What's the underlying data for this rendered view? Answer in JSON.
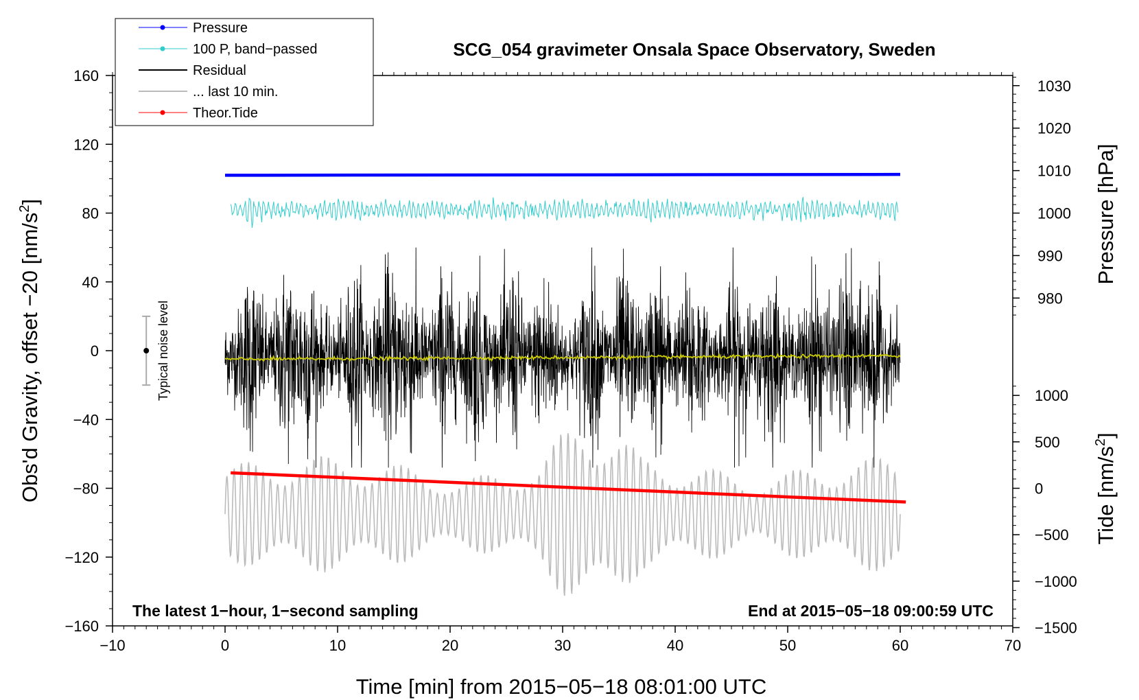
{
  "chart_data": {
    "type": "line",
    "title": "SCG_054 gravimeter Onsala Space Observatory, Sweden",
    "xlabel": "Time [min] from 2015−05−18 08:01:00 UTC",
    "ylabel_left": "Obs'd Gravity, offset −20 [nm/s",
    "ylabel_left_sup": "2",
    "ylabel_left_close": "]",
    "ylabel_pressure": "Pressure [hPa]",
    "ylabel_tide": "Tide [nm/s",
    "ylabel_tide_sup": "2",
    "ylabel_tide_close": "]",
    "xlim": [
      -10,
      70
    ],
    "ylim": [
      -160,
      160
    ],
    "xticks": [
      -10,
      0,
      10,
      20,
      30,
      40,
      50,
      60,
      70
    ],
    "xtick_labels": [
      "−10",
      "0",
      "10",
      "20",
      "30",
      "40",
      "50",
      "60",
      "70"
    ],
    "yticks": [
      -160,
      -120,
      -80,
      -40,
      0,
      40,
      80,
      120,
      160
    ],
    "ytick_labels": [
      "−160",
      "−120",
      "−80",
      "−40",
      "0",
      "40",
      "80",
      "120",
      "160"
    ],
    "pressure_axis": {
      "ticks": [
        980,
        990,
        1000,
        1010,
        1020,
        1030
      ],
      "labels": [
        "980",
        "990",
        "1000",
        "1010",
        "1020",
        "1030"
      ],
      "gravity_at_1000": 80,
      "gravity_per_hPa": 2.47
    },
    "tide_axis": {
      "ticks": [
        -1500,
        -1000,
        -500,
        0,
        500,
        1000
      ],
      "labels": [
        "−1500",
        "−1000",
        "−500",
        "0",
        "500",
        "1000"
      ],
      "gravity_at_0": -80,
      "gravity_per_unit": 0.054
    },
    "legend": {
      "position": "top-left",
      "entries": [
        {
          "label": "Pressure",
          "color": "#0000ff",
          "marker": true
        },
        {
          "label": "100 P, band−passed",
          "color": "#33cccc",
          "marker": true
        },
        {
          "label": "Residual",
          "color": "#000000",
          "marker": false
        },
        {
          "label": "... last 10 min.",
          "color": "#bbbbbb",
          "marker": false
        },
        {
          "label": "Theor.Tide",
          "color": "#ff0000",
          "marker": true
        }
      ]
    },
    "series": [
      {
        "name": "Pressure",
        "color": "#0000ff",
        "x": [
          0,
          60
        ],
        "pressure_hPa": [
          1008.9,
          1009.1
        ]
      },
      {
        "name": "100 P, band-passed",
        "color": "#33cccc",
        "x_range": [
          0.5,
          59.8
        ],
        "center": 82,
        "amplitude": 4
      },
      {
        "name": "Residual",
        "color": "#000000",
        "x_range": [
          0,
          60
        ],
        "center": -4,
        "max_abs": 60
      },
      {
        "name": "Residual mean",
        "color": "#cccc00",
        "x_range": [
          0,
          60
        ],
        "y": [
          -5,
          -3
        ]
      },
      {
        "name": "... last 10 min.",
        "color": "#bbbbbb",
        "x_range": [
          0,
          60
        ],
        "y_range": [
          -157,
          -48
        ],
        "center": -95
      },
      {
        "name": "Theor.Tide",
        "color": "#ff0000",
        "x": [
          0.5,
          60.5
        ],
        "y": [
          -71,
          -88
        ]
      }
    ],
    "noise_level": {
      "label": "Typical noise level",
      "x": -7,
      "y": 0,
      "range": [
        -20,
        20
      ]
    },
    "annotations": {
      "bottom_left": "The latest 1−hour, 1−second sampling",
      "bottom_right": "End at 2015−05−18 09:00:59 UTC"
    }
  }
}
